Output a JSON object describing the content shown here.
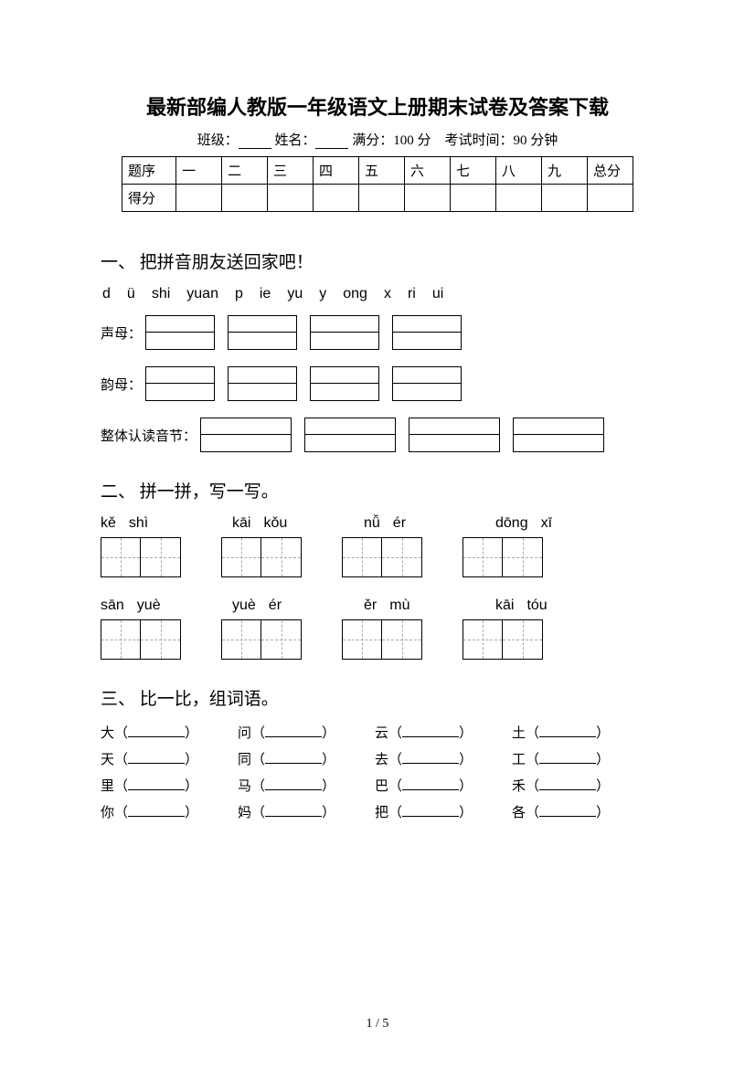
{
  "title": "最新部编人教版一年级语文上册期末试卷及答案下载",
  "info": {
    "class_label": "班级：",
    "name_label": "姓名：",
    "full_score_label": "满分：",
    "full_score_value": "100 分",
    "exam_time_label": "考试时间：",
    "exam_time_value": "90 分钟"
  },
  "score_table": {
    "header_first": "题序",
    "columns": [
      "一",
      "二",
      "三",
      "四",
      "五",
      "六",
      "七",
      "八",
      "九",
      "总分"
    ],
    "score_row_first": "得分"
  },
  "section1": {
    "heading": "一、 把拼音朋友送回家吧！",
    "pinyin_items": [
      "d",
      "ü",
      "shi",
      "yuan",
      "p",
      "ie",
      "yu",
      "y",
      "ong",
      "x",
      "ri",
      "ui"
    ],
    "labels": {
      "shengmu": "声母：",
      "yunmu": "韵母：",
      "zhengti": "整体认读音节："
    }
  },
  "section2": {
    "heading": "二、 拼一拼，写一写。",
    "row1": [
      [
        "kě",
        "shì"
      ],
      [
        "kāi",
        "kǒu"
      ],
      [
        "nǚ",
        "ér"
      ],
      [
        "dōng",
        "xī"
      ]
    ],
    "row2": [
      [
        "sān",
        "yuè"
      ],
      [
        "yuè",
        "ér"
      ],
      [
        "ěr",
        "mù"
      ],
      [
        "kāi",
        "tóu"
      ]
    ]
  },
  "section3": {
    "heading": "三、 比一比，组词语。",
    "rows": [
      [
        "大",
        "问",
        "云",
        "土"
      ],
      [
        "天",
        "同",
        "去",
        "工"
      ],
      [
        "里",
        "马",
        "巴",
        "禾"
      ],
      [
        "你",
        "妈",
        "把",
        "各"
      ]
    ]
  },
  "page_num": "1 / 5"
}
